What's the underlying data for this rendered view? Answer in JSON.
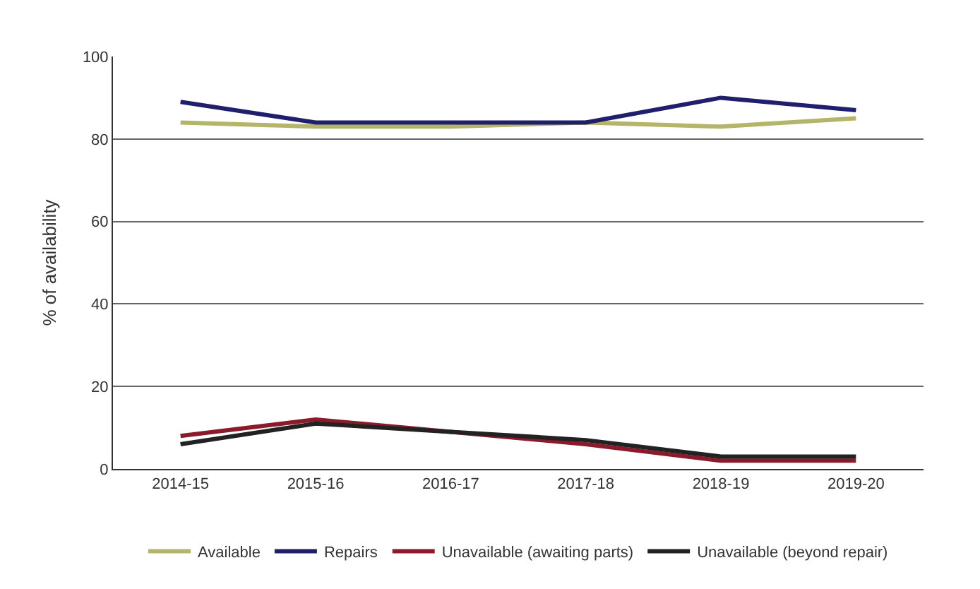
{
  "chart_data": {
    "type": "line",
    "ylabel": "% of availability",
    "categories": [
      "2014-15",
      "2015-16",
      "2016-17",
      "2017-18",
      "2018-19",
      "2019-20"
    ],
    "series": [
      {
        "name": "Available",
        "color": "#b5b56a",
        "values": [
          84,
          83,
          83,
          84,
          83,
          85
        ]
      },
      {
        "name": "Repairs",
        "color": "#1f1f6e",
        "values": [
          89,
          84,
          84,
          84,
          90,
          87
        ]
      },
      {
        "name": "Unavailable (awaiting parts)",
        "color": "#8b1a2b",
        "values": [
          8,
          12,
          9,
          6,
          2,
          2
        ]
      },
      {
        "name": "Unavailable (beyond repair)",
        "color": "#222222",
        "values": [
          6,
          11,
          9,
          7,
          3,
          3
        ]
      }
    ],
    "ylim": [
      0,
      100
    ],
    "yticks": [
      0,
      20,
      40,
      60,
      80,
      100
    ],
    "grid": "y",
    "legend": "bottom"
  }
}
